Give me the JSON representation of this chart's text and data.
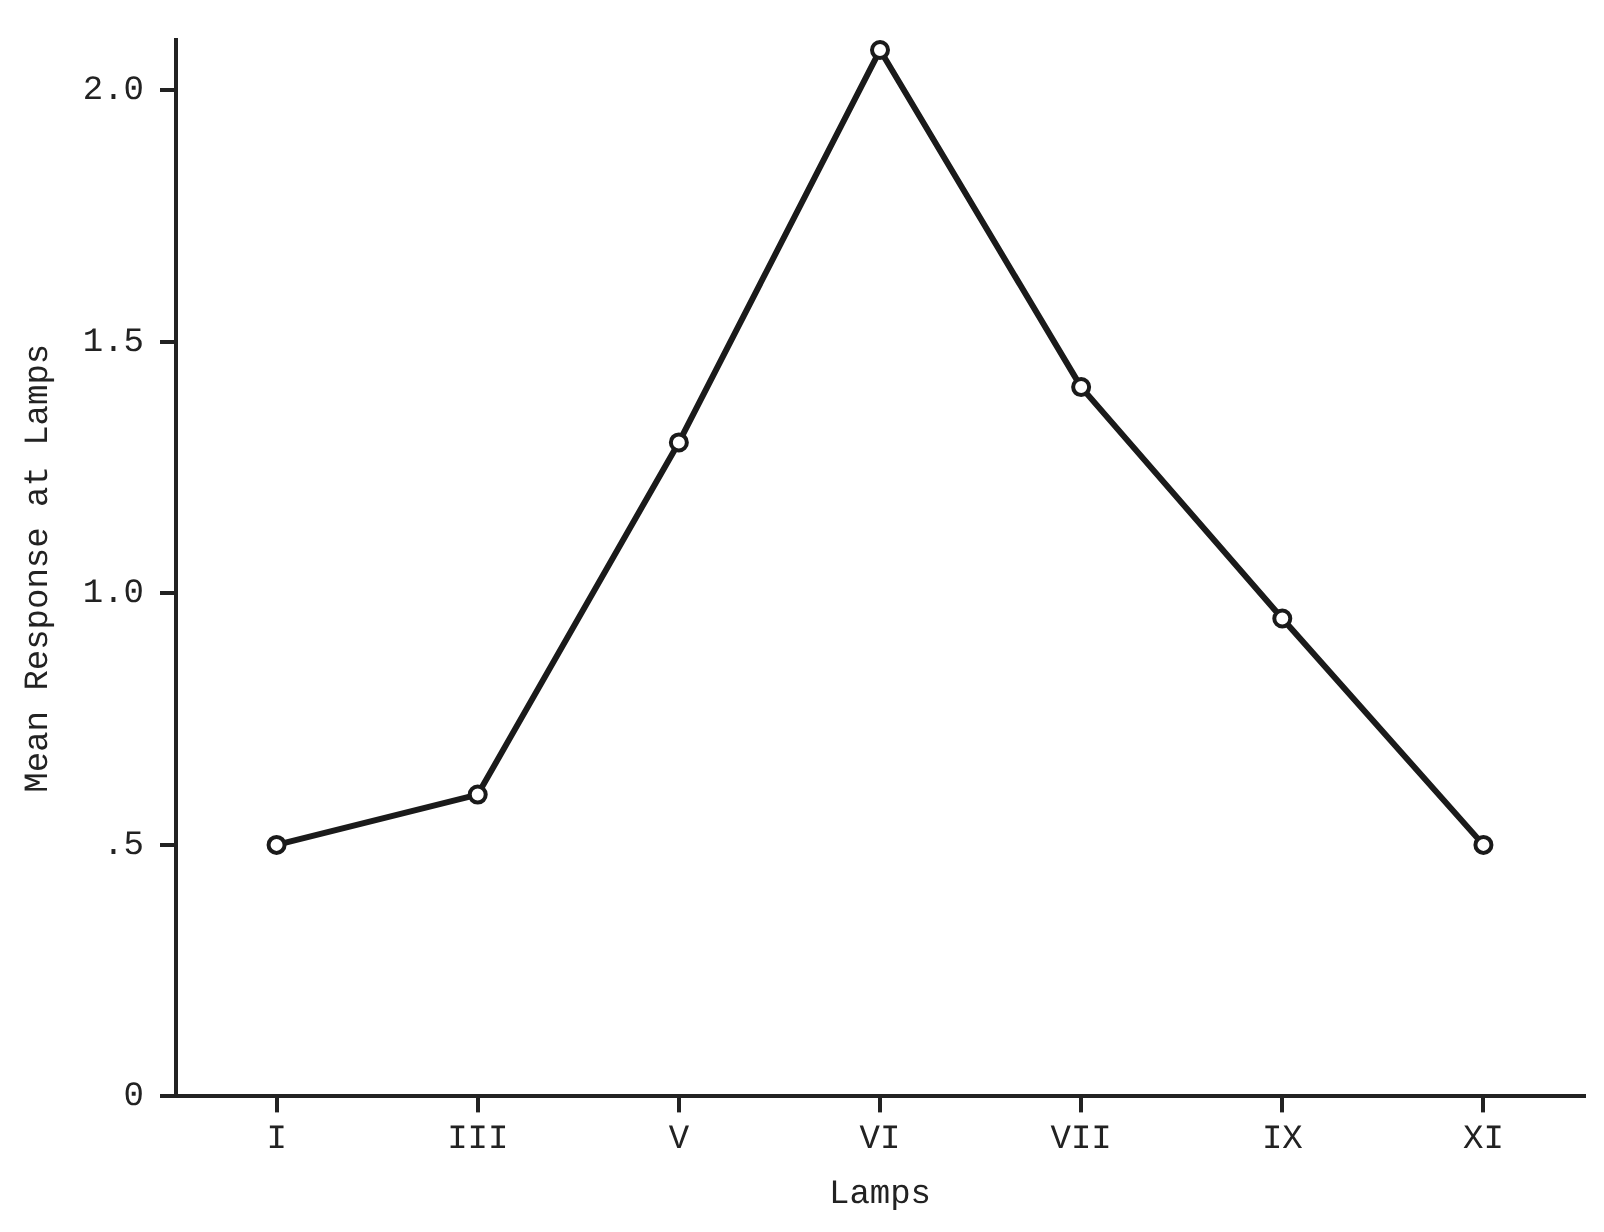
{
  "chart_data": {
    "type": "line",
    "xlabel": "Lamps",
    "ylabel": "Mean Response at Lamps",
    "categories": [
      "I",
      "III",
      "V",
      "VI",
      "VII",
      "IX",
      "XI"
    ],
    "series": [
      {
        "color": "#1a1a1a",
        "values": [
          0.5,
          0.6,
          1.3,
          2.08,
          1.41,
          0.95,
          0.5
        ]
      }
    ],
    "ylim": [
      0,
      2.1
    ],
    "yticks": [
      0,
      {
        "value": 0.5,
        "label": ".5"
      },
      {
        "value": 1,
        "label": "1.0"
      },
      1.5,
      {
        "value": 2,
        "label": "2.0"
      }
    ],
    "grid": false,
    "legend": false,
    "marker": "circle",
    "line_style": "solid"
  }
}
